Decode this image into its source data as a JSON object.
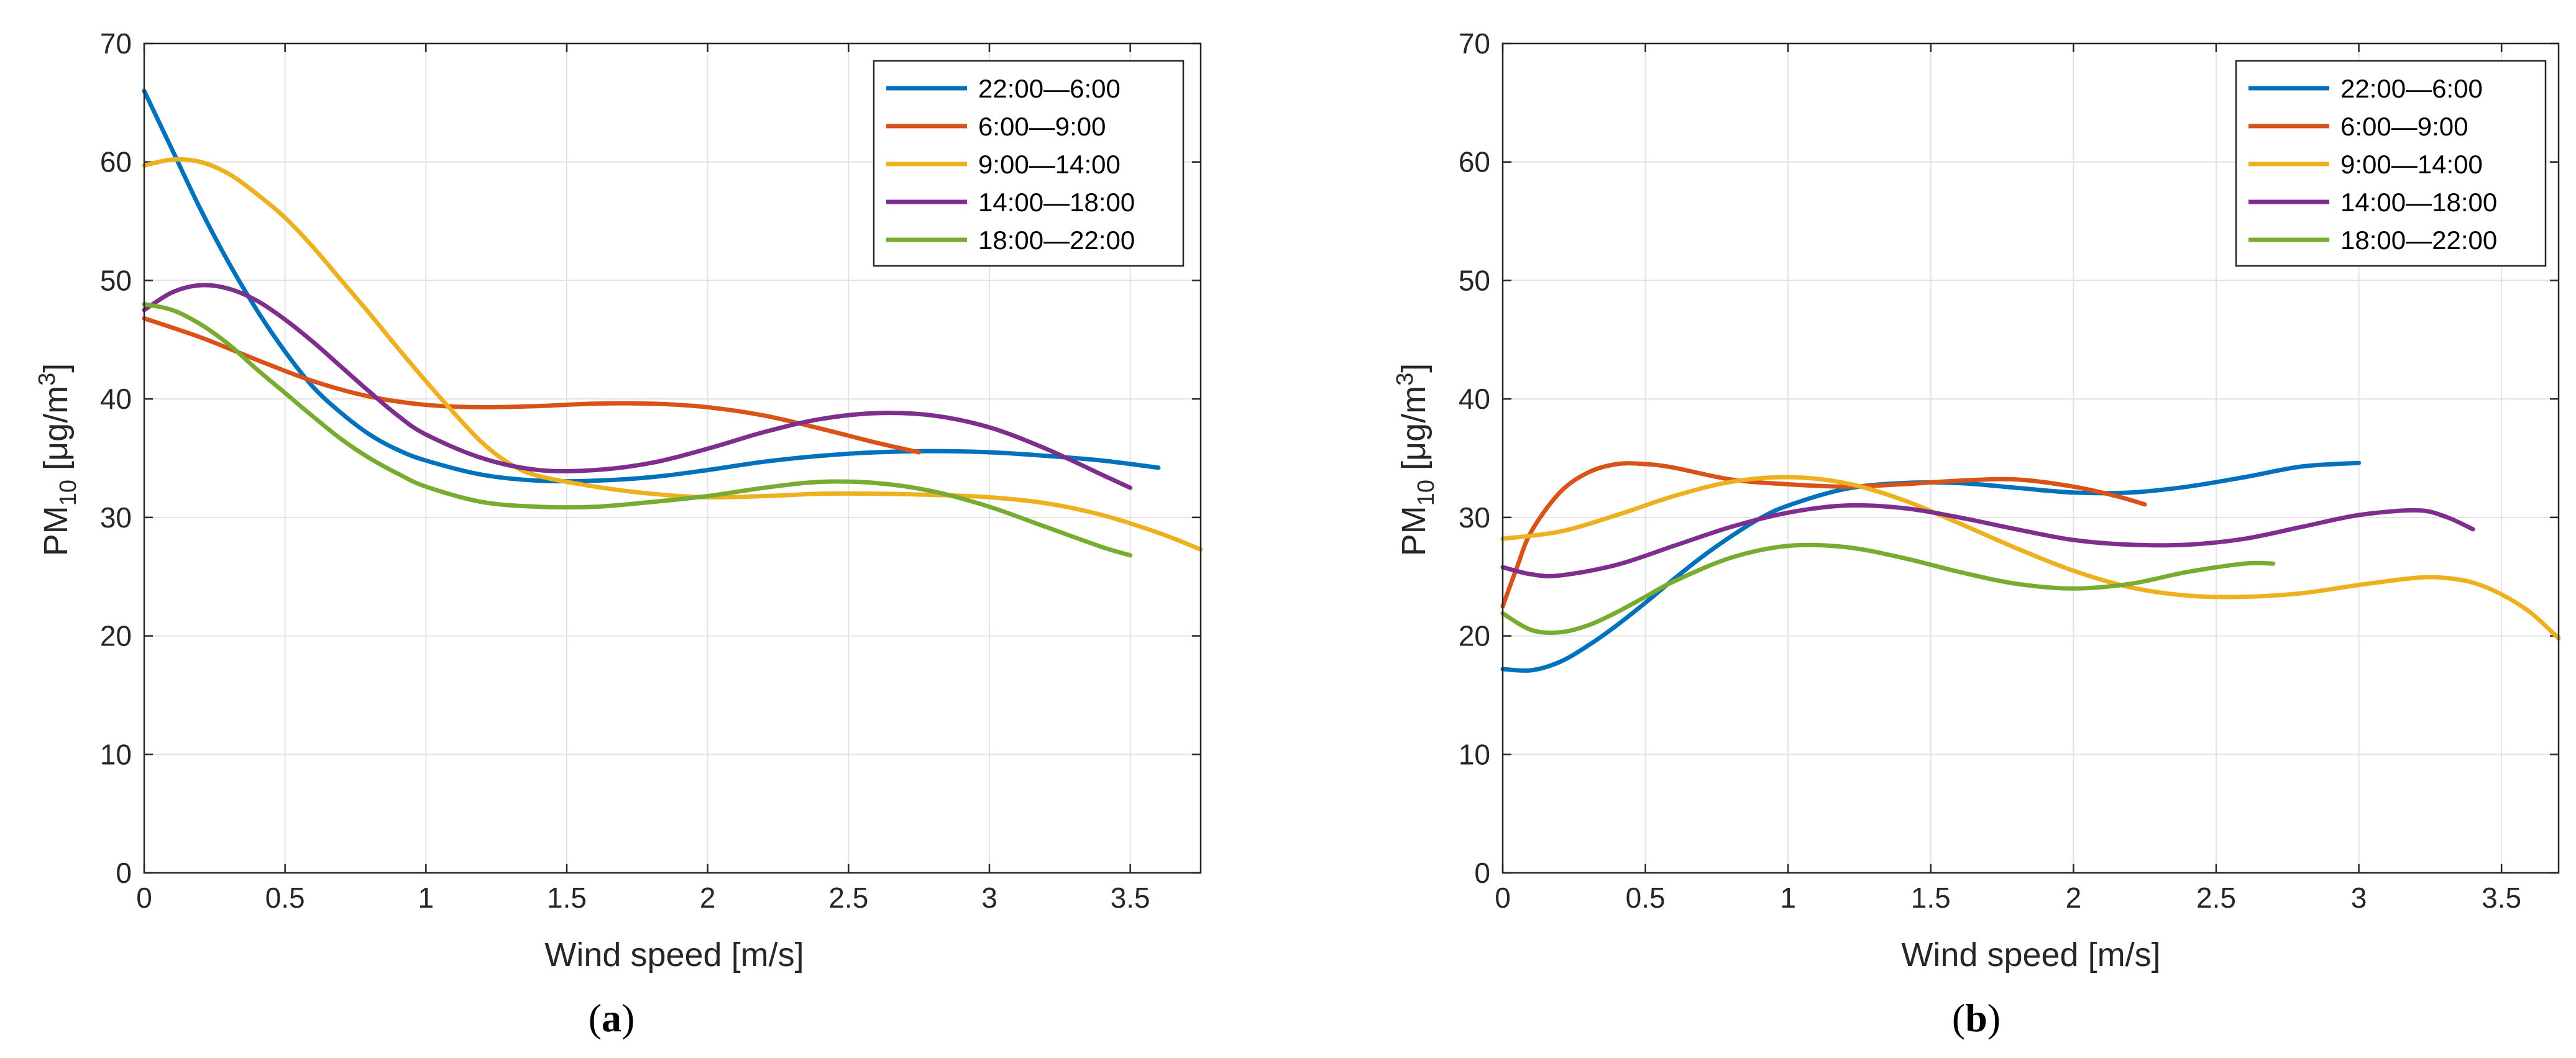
{
  "colors": {
    "s1": "#0072BD",
    "s2": "#D95319",
    "s3": "#EDB120",
    "s4": "#7E2F8E",
    "s5": "#77AC30"
  },
  "chart_data": [
    {
      "panel_label": "a",
      "type": "line",
      "title": "",
      "xlabel": "Wind speed [m/s]",
      "ylabel_main": "PM",
      "ylabel_sub": "10",
      "ylabel_unit": " [μg/m",
      "ylabel_sup": "3",
      "ylabel_end": "]",
      "xlim": [
        0,
        3.75
      ],
      "ylim": [
        0,
        70
      ],
      "xticks": [
        "0",
        "0.5",
        "1",
        "1.5",
        "2",
        "2.5",
        "3",
        "3.5"
      ],
      "yticks": [
        "0",
        "10",
        "20",
        "30",
        "40",
        "50",
        "60",
        "70"
      ],
      "grid": true,
      "legend_position": "top-right",
      "series": [
        {
          "name": "22:00—6:00",
          "color": "s1",
          "x": [
            0,
            0.1,
            0.2,
            0.3,
            0.4,
            0.5,
            0.6,
            0.7,
            0.8,
            0.9,
            1.0,
            1.2,
            1.4,
            1.6,
            1.8,
            2.0,
            2.2,
            2.4,
            2.6,
            2.8,
            3.0,
            3.2,
            3.4,
            3.6
          ],
          "y": [
            66,
            61,
            56,
            51.5,
            47.5,
            44,
            41,
            38.8,
            37,
            35.7,
            34.8,
            33.6,
            33.1,
            33.1,
            33.4,
            34,
            34.7,
            35.2,
            35.5,
            35.6,
            35.5,
            35.2,
            34.8,
            34.2
          ]
        },
        {
          "name": "6:00—9:00",
          "color": "s2",
          "x": [
            0,
            0.2,
            0.4,
            0.6,
            0.8,
            1.0,
            1.2,
            1.4,
            1.6,
            1.8,
            2.0,
            2.2,
            2.4,
            2.6,
            2.75
          ],
          "y": [
            46.8,
            45.2,
            43.3,
            41.5,
            40.2,
            39.5,
            39.3,
            39.4,
            39.6,
            39.6,
            39.3,
            38.6,
            37.5,
            36.3,
            35.5
          ]
        },
        {
          "name": "9:00—14:00",
          "color": "s3",
          "x": [
            0,
            0.1,
            0.2,
            0.3,
            0.4,
            0.5,
            0.6,
            0.7,
            0.8,
            0.9,
            1.0,
            1.1,
            1.2,
            1.3,
            1.4,
            1.6,
            1.8,
            2.0,
            2.2,
            2.4,
            2.6,
            2.8,
            3.0,
            3.2,
            3.4,
            3.6,
            3.75
          ],
          "y": [
            59.7,
            60.2,
            60.0,
            59.0,
            57.3,
            55.3,
            52.8,
            50.0,
            47.2,
            44.3,
            41.5,
            38.8,
            36.3,
            34.5,
            33.5,
            32.6,
            32.0,
            31.7,
            31.8,
            32.0,
            32.0,
            31.9,
            31.7,
            31.2,
            30.2,
            28.7,
            27.3
          ]
        },
        {
          "name": "14:00—18:00",
          "color": "s4",
          "x": [
            0,
            0.1,
            0.2,
            0.3,
            0.4,
            0.5,
            0.6,
            0.7,
            0.8,
            0.9,
            1.0,
            1.2,
            1.4,
            1.6,
            1.8,
            2.0,
            2.2,
            2.4,
            2.6,
            2.8,
            3.0,
            3.2,
            3.4,
            3.5
          ],
          "y": [
            47.5,
            49.0,
            49.6,
            49.3,
            48.3,
            46.7,
            44.8,
            42.7,
            40.6,
            38.6,
            37.0,
            35.0,
            34.0,
            34.0,
            34.6,
            35.8,
            37.2,
            38.3,
            38.8,
            38.6,
            37.6,
            35.8,
            33.6,
            32.5
          ]
        },
        {
          "name": "18:00—22:00",
          "color": "s5",
          "x": [
            0,
            0.1,
            0.2,
            0.3,
            0.4,
            0.5,
            0.6,
            0.7,
            0.8,
            0.9,
            1.0,
            1.2,
            1.4,
            1.6,
            1.8,
            2.0,
            2.2,
            2.4,
            2.6,
            2.8,
            3.0,
            3.2,
            3.4,
            3.5
          ],
          "y": [
            48,
            47.5,
            46.3,
            44.6,
            42.5,
            40.5,
            38.5,
            36.6,
            35.0,
            33.7,
            32.6,
            31.3,
            30.9,
            30.9,
            31.3,
            31.8,
            32.5,
            33.0,
            32.9,
            32.2,
            30.9,
            29.2,
            27.5,
            26.8
          ]
        }
      ]
    },
    {
      "panel_label": "b",
      "type": "line",
      "title": "",
      "xlabel": "Wind speed [m/s]",
      "ylabel_main": "PM",
      "ylabel_sub": "10",
      "ylabel_unit": " [μg/m",
      "ylabel_sup": "3",
      "ylabel_end": "]",
      "xlim": [
        0,
        3.7
      ],
      "ylim": [
        0,
        70
      ],
      "xticks": [
        "0",
        "0.5",
        "1",
        "1.5",
        "2",
        "2.5",
        "3",
        "3.5"
      ],
      "yticks": [
        "0",
        "10",
        "20",
        "30",
        "40",
        "50",
        "60",
        "70"
      ],
      "grid": true,
      "legend_position": "top-right",
      "series": [
        {
          "name": "22:00—6:00",
          "color": "s1",
          "x": [
            0,
            0.1,
            0.2,
            0.3,
            0.4,
            0.5,
            0.6,
            0.7,
            0.8,
            0.9,
            1.0,
            1.2,
            1.4,
            1.6,
            1.8,
            2.0,
            2.2,
            2.4,
            2.6,
            2.8,
            3.0
          ],
          "y": [
            17.2,
            17.1,
            17.8,
            19.2,
            20.9,
            22.8,
            24.8,
            26.7,
            28.4,
            29.9,
            31.0,
            32.4,
            32.9,
            32.9,
            32.5,
            32.1,
            32.1,
            32.6,
            33.4,
            34.3,
            34.6
          ]
        },
        {
          "name": "6:00—9:00",
          "color": "s2",
          "x": [
            0,
            0.05,
            0.1,
            0.2,
            0.3,
            0.4,
            0.5,
            0.6,
            0.8,
            1.0,
            1.2,
            1.4,
            1.6,
            1.8,
            2.0,
            2.15,
            2.25
          ],
          "y": [
            22.5,
            25.8,
            28.8,
            32.1,
            33.8,
            34.5,
            34.5,
            34.2,
            33.2,
            32.8,
            32.6,
            32.8,
            33.1,
            33.2,
            32.6,
            31.8,
            31.1
          ]
        },
        {
          "name": "9:00—14:00",
          "color": "s3",
          "x": [
            0,
            0.2,
            0.4,
            0.6,
            0.8,
            1.0,
            1.2,
            1.4,
            1.6,
            1.8,
            2.0,
            2.2,
            2.4,
            2.6,
            2.8,
            3.0,
            3.2,
            3.3,
            3.4,
            3.5,
            3.6,
            3.7
          ],
          "y": [
            28.2,
            28.8,
            30.2,
            31.8,
            33.0,
            33.4,
            32.9,
            31.5,
            29.5,
            27.4,
            25.5,
            24.1,
            23.4,
            23.3,
            23.6,
            24.3,
            24.9,
            24.9,
            24.5,
            23.5,
            22.0,
            19.8
          ]
        },
        {
          "name": "14:00—18:00",
          "color": "s4",
          "x": [
            0,
            0.1,
            0.2,
            0.4,
            0.6,
            0.8,
            1.0,
            1.2,
            1.4,
            1.6,
            1.8,
            2.0,
            2.2,
            2.4,
            2.6,
            2.8,
            3.0,
            3.2,
            3.3,
            3.4
          ],
          "y": [
            25.8,
            25.2,
            25.1,
            26.0,
            27.6,
            29.2,
            30.4,
            31.0,
            30.8,
            30.0,
            29.0,
            28.1,
            27.7,
            27.7,
            28.2,
            29.2,
            30.2,
            30.6,
            30.1,
            29.0
          ]
        },
        {
          "name": "18:00—22:00",
          "color": "s5",
          "x": [
            0,
            0.1,
            0.2,
            0.3,
            0.4,
            0.5,
            0.6,
            0.8,
            1.0,
            1.2,
            1.4,
            1.6,
            1.8,
            2.0,
            2.2,
            2.4,
            2.6,
            2.7
          ],
          "y": [
            21.9,
            20.5,
            20.3,
            20.9,
            22.0,
            23.3,
            24.6,
            26.6,
            27.6,
            27.5,
            26.6,
            25.4,
            24.4,
            24.0,
            24.4,
            25.4,
            26.1,
            26.1
          ]
        }
      ]
    }
  ]
}
